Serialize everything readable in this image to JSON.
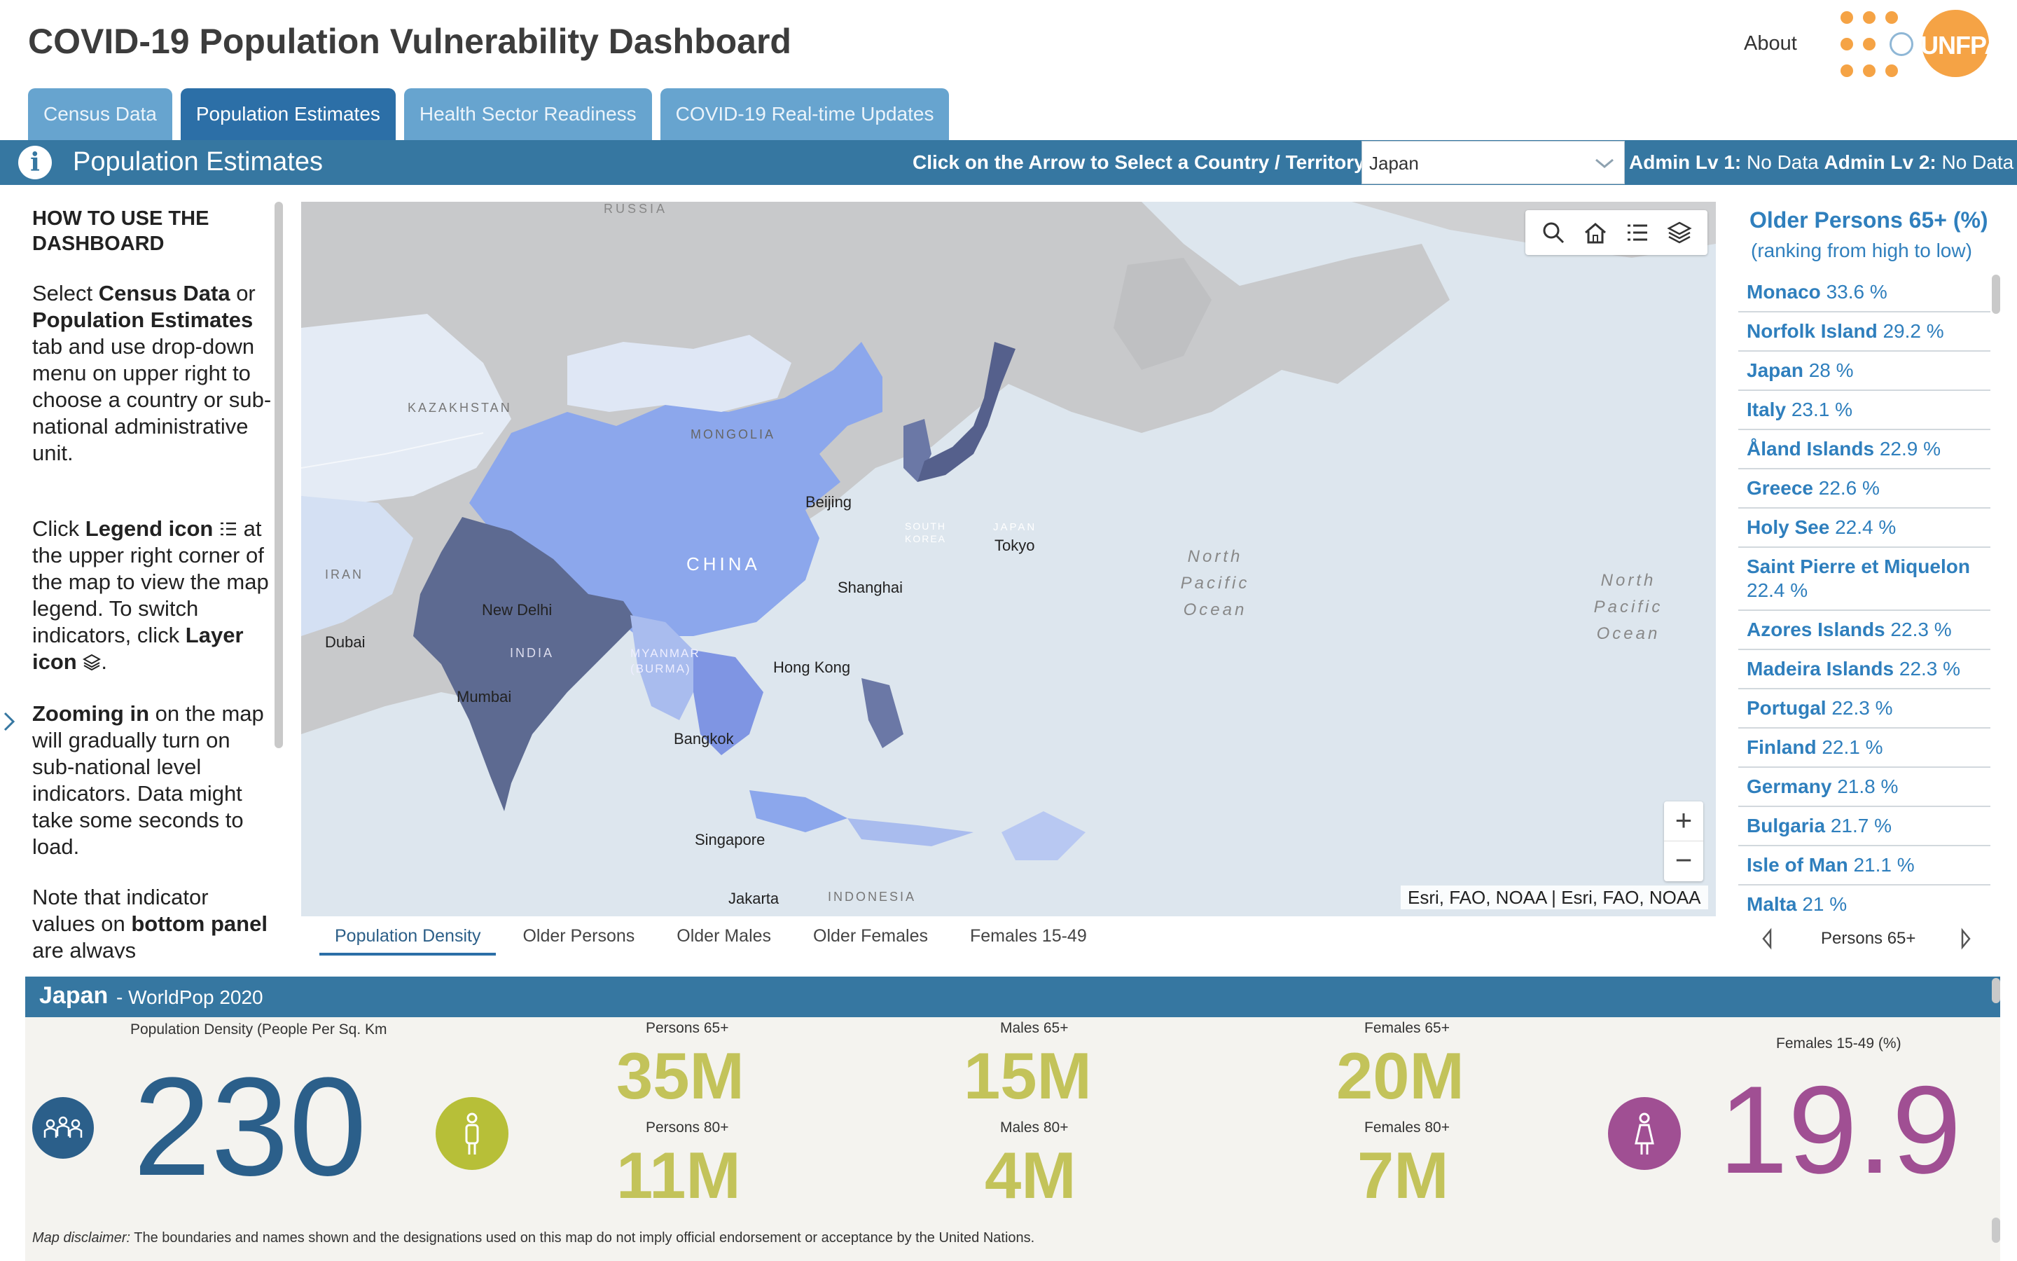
{
  "header": {
    "title": "COVID-19 Population Vulnerability Dashboard",
    "about_label": "About",
    "logo_text": "UNFPA"
  },
  "tabs": [
    {
      "label": "Census Data"
    },
    {
      "label": "Population Estimates"
    },
    {
      "label": "Health Sector Readiness"
    },
    {
      "label": "COVID-19 Real-time Updates"
    }
  ],
  "toolbar": {
    "title": "Population Estimates",
    "select_prompt": "Click on the Arrow to Select a Country / Territory:",
    "selected_country": "Japan",
    "admin1_label": "Admin Lv 1:",
    "admin1_value": "No Data",
    "admin2_label": "Admin Lv 2:",
    "admin2_value": "No Data"
  },
  "instructions": {
    "title": "HOW TO USE THE DASHBOARD",
    "p1": [
      "Select ",
      "Census Data",
      " or ",
      "Population Estimates",
      " tab and use drop-down menu on upper right to choose a country or sub-national administrative unit."
    ],
    "p2": [
      "Click ",
      "Legend icon",
      " at the upper right corner of the map to view the map legend. To switch indicators, click ",
      "Layer icon",
      "."
    ],
    "p3": [
      "Zooming in",
      " on the map will gradually turn on sub-national level indicators. Data might take some seconds to load."
    ],
    "p4": [
      "Note that indicator values on ",
      "bottom panel",
      " are always"
    ]
  },
  "map": {
    "labels": [
      "RUSSIA",
      "KAZAKHSTAN",
      "MONGOLIA",
      "CHINA",
      "IRAN",
      "INDIA",
      "MYANMAR (BURMA)",
      "SOUTH KOREA",
      "JAPAN",
      "INDONESIA",
      "Beijing",
      "Shanghai",
      "Tokyo",
      "New Delhi",
      "Dubai",
      "Mumbai",
      "Hong Kong",
      "Bangkok",
      "Singapore",
      "Jakarta",
      "North Pacific Ocean",
      "North Pacific Ocean"
    ],
    "attribution": "Esri, FAO, NOAA | Esri, FAO, NOAA",
    "tools": [
      "search-icon",
      "home-icon",
      "legend-icon",
      "layers-icon"
    ],
    "zoom_in": "+",
    "zoom_out": "−"
  },
  "indicator_tabs": [
    {
      "label": "Population Density"
    },
    {
      "label": "Older Persons"
    },
    {
      "label": "Older Males"
    },
    {
      "label": "Older Females"
    },
    {
      "label": "Females 15-49"
    }
  ],
  "ranking": {
    "title": "Older Persons 65+ (%)",
    "subtitle": "(ranking from high to low)",
    "items": [
      {
        "name": "Monaco",
        "value": "33.6 %"
      },
      {
        "name": "Norfolk Island",
        "value": "29.2 %"
      },
      {
        "name": "Japan",
        "value": "28 %"
      },
      {
        "name": "Italy",
        "value": "23.1 %"
      },
      {
        "name": "Åland Islands",
        "value": "22.9 %"
      },
      {
        "name": "Greece",
        "value": "22.6 %"
      },
      {
        "name": "Holy See",
        "value": "22.4 %"
      },
      {
        "name": "Saint Pierre et Miquelon",
        "value": "22.4 %"
      },
      {
        "name": "Azores Islands",
        "value": "22.3 %"
      },
      {
        "name": "Madeira Islands",
        "value": "22.3 %"
      },
      {
        "name": "Portugal",
        "value": "22.3 %"
      },
      {
        "name": "Finland",
        "value": "22.1 %"
      },
      {
        "name": "Germany",
        "value": "21.8 %"
      },
      {
        "name": "Bulgaria",
        "value": "21.7 %"
      },
      {
        "name": "Isle of Man",
        "value": "21.1 %"
      },
      {
        "name": "Malta",
        "value": "21 %"
      }
    ],
    "nav_label": "Persons 65+"
  },
  "bottom": {
    "country": "Japan",
    "source": "- WorldPop 2020",
    "density_label": "Population Density (People Per Sq. Km",
    "density_value": "230",
    "persons65_label": "Persons 65+",
    "persons65_value": "35M",
    "persons80_label": "Persons 80+",
    "persons80_value": "11M",
    "males65_label": "Males 65+",
    "males65_value": "15M",
    "males80_label": "Males 80+",
    "males80_value": "4M",
    "females65_label": "Females 65+",
    "females65_value": "20M",
    "females80_label": "Females 80+",
    "females80_value": "7M",
    "females1549_label": "Females 15-49 (%)",
    "females1549_value": "19.9",
    "colors": {
      "density": "#2b5f8a",
      "older": "#c3c35a",
      "females": "#a04f93"
    }
  },
  "disclaimer": {
    "lead": "Map disclaimer:",
    "text": " The boundaries and names shown and the designations used on this map do not imply official endorsement or acceptance by the United Nations."
  }
}
